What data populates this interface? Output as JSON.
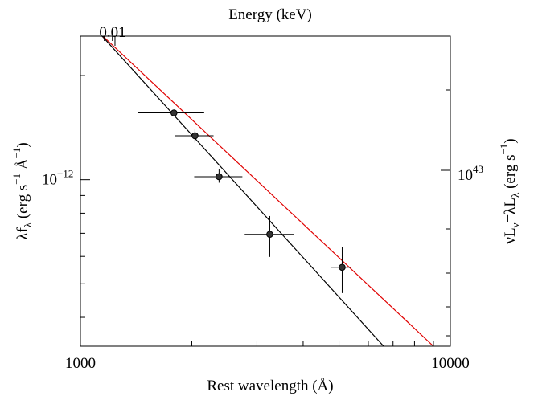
{
  "chart_data": {
    "type": "scatter",
    "xlabel": "Rest wavelength (Å)",
    "ylabel": "λf_λ (erg s^-1 Å^-1)",
    "top_axis_label": "Energy (keV)",
    "top_axis_ticklabel": "0.01",
    "right_axis_label": "νL_ν=λL_λ (erg s^-1)",
    "x_scale": "log",
    "y_scale": "log",
    "xlim": [
      1000,
      10000
    ],
    "ylim": [
      3.3e-13,
      2.6e-12
    ],
    "x_tick_labels": [
      {
        "value": 1000,
        "label": "1000"
      },
      {
        "value": 10000,
        "label": "10000"
      }
    ],
    "y_tick_labels": [
      {
        "value": 1e-12,
        "label": "10^-12"
      }
    ],
    "right_tick_labels": [
      {
        "label": "10^43"
      }
    ],
    "grid": false,
    "points": [
      {
        "x": 1790,
        "y": 1.56e-12,
        "xerr": [
          1430,
          2160
        ],
        "yerr": [
          1.53e-12,
          1.59e-12
        ]
      },
      {
        "x": 2040,
        "y": 1.34e-12,
        "xerr": [
          1800,
          2290
        ],
        "yerr": [
          1.28e-12,
          1.4e-12
        ]
      },
      {
        "x": 2370,
        "y": 1.02e-12,
        "xerr": [
          2030,
          2740
        ],
        "yerr": [
          9.8e-13,
          1.07e-12
        ]
      },
      {
        "x": 3250,
        "y": 6.95e-13,
        "xerr": [
          2780,
          3780
        ],
        "yerr": [
          5.98e-13,
          7.85e-13
        ]
      },
      {
        "x": 5100,
        "y": 5.58e-13,
        "xerr": [
          4750,
          5400
        ],
        "yerr": [
          4.7e-13,
          6.38e-13
        ]
      }
    ],
    "fits": [
      {
        "color": "#000000",
        "points": [
          [
            1145,
            2.6e-12
          ],
          [
            6600,
            3.3e-13
          ]
        ]
      },
      {
        "color": "#e00000",
        "points": [
          [
            1150,
            2.6e-12
          ],
          [
            9000,
            3.3e-13
          ]
        ]
      }
    ],
    "point_fill": "#333333",
    "top_tick_wavelengths": [
      1240,
      1160,
      1220
    ]
  }
}
